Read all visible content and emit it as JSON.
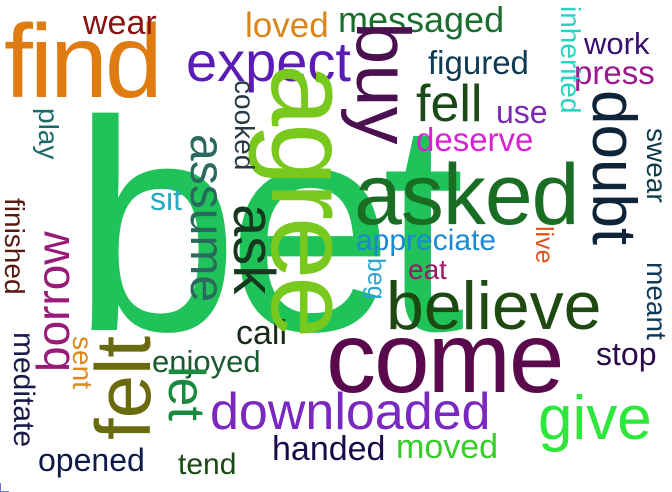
{
  "words": [
    {
      "text": "bet",
      "color": "#1fc35a"
    },
    {
      "text": "agree",
      "color": "#78c81e"
    },
    {
      "text": "find",
      "color": "#e07b12"
    },
    {
      "text": "buy",
      "color": "#4a1050"
    },
    {
      "text": "asked",
      "color": "#1a6e24"
    },
    {
      "text": "come",
      "color": "#5a0a4c"
    },
    {
      "text": "believe",
      "color": "#1e4a12"
    },
    {
      "text": "felt",
      "color": "#6a6a10"
    },
    {
      "text": "downloaded",
      "color": "#7a28c0"
    },
    {
      "text": "give",
      "color": "#2ee63c"
    },
    {
      "text": "expect",
      "color": "#5a1cb4"
    },
    {
      "text": "doubt",
      "color": "#0e2438"
    },
    {
      "text": "assume",
      "color": "#2a6a5c"
    },
    {
      "text": "ask",
      "color": "#16381e"
    },
    {
      "text": "borrow",
      "color": "#9a1a7a"
    },
    {
      "text": "fell",
      "color": "#1a4a18"
    },
    {
      "text": "wear",
      "color": "#8a1212"
    },
    {
      "text": "loved",
      "color": "#d8861c"
    },
    {
      "text": "messaged",
      "color": "#1a6e2e"
    },
    {
      "text": "inherited",
      "color": "#2ad2c2"
    },
    {
      "text": "work",
      "color": "#381070"
    },
    {
      "text": "press",
      "color": "#9a1890"
    },
    {
      "text": "figured",
      "color": "#0e3a52"
    },
    {
      "text": "use",
      "color": "#7a2ab0"
    },
    {
      "text": "deserve",
      "color": "#d822d2"
    },
    {
      "text": "cooked",
      "color": "#2a3a44"
    },
    {
      "text": "sit",
      "color": "#2aaac0"
    },
    {
      "text": "play",
      "color": "#1a6a6a"
    },
    {
      "text": "finished",
      "color": "#5a1a10"
    },
    {
      "text": "appreciate",
      "color": "#1a8ad2"
    },
    {
      "text": "beg",
      "color": "#2aa2d2"
    },
    {
      "text": "eat",
      "color": "#9a1a6a"
    },
    {
      "text": "live",
      "color": "#e0521c"
    },
    {
      "text": "swear",
      "color": "#0e3a4a"
    },
    {
      "text": "meant",
      "color": "#0e3a5a"
    },
    {
      "text": "call",
      "color": "#1a2a1a"
    },
    {
      "text": "enjoyed",
      "color": "#1a5a30"
    },
    {
      "text": "stop",
      "color": "#2a0a4a"
    },
    {
      "text": "sent",
      "color": "#e0881c"
    },
    {
      "text": "meditate",
      "color": "#1a1a4a"
    },
    {
      "text": "let",
      "color": "#1a8a40"
    },
    {
      "text": "opened",
      "color": "#0e1a4a"
    },
    {
      "text": "tend",
      "color": "#1a4a14"
    },
    {
      "text": "handed",
      "color": "#1a0a4a"
    },
    {
      "text": "moved",
      "color": "#38cc2a"
    }
  ]
}
